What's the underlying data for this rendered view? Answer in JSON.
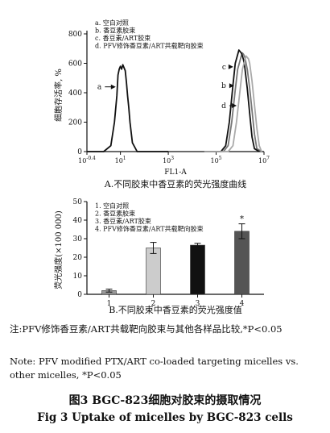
{
  "chart_data": [
    {
      "type": "line",
      "caption": "A.不同胶束中香豆素的荧光强度曲线",
      "xlabel": "FL1-A",
      "ylabel": "细胞存活率, %",
      "xscale": "log",
      "xlim": [
        -0.4,
        7.0
      ],
      "ylim": [
        0,
        800
      ],
      "y_ticks": [
        "0",
        "200",
        "400",
        "600",
        "800"
      ],
      "x_ticks": [
        {
          "pos": -0.4,
          "base": "10",
          "exp": "-0.4"
        },
        {
          "pos": 1,
          "base": "10",
          "exp": "1"
        },
        {
          "pos": 3,
          "base": "10",
          "exp": "3"
        },
        {
          "pos": 5,
          "base": "10",
          "exp": "5"
        },
        {
          "pos": 7,
          "base": "10",
          "exp": "7"
        }
      ],
      "legend": [
        "a. 空白对照",
        "b. 香豆素胶束",
        "c. 香豆素/ART胶束",
        "d. PFV修饰香豆素/ART共载靶向胶束"
      ],
      "series": [
        {
          "name": "a",
          "color": "#111111",
          "x": [
            -0.4,
            0.3,
            0.6,
            0.75,
            0.85,
            0.9,
            0.95,
            1.0,
            1.05,
            1.1,
            1.15,
            1.2,
            1.25,
            1.3,
            1.35,
            1.4,
            1.5,
            1.7,
            2.0,
            2.4,
            3.0
          ],
          "y": [
            0,
            0,
            40,
            200,
            380,
            520,
            560,
            580,
            560,
            590,
            570,
            550,
            470,
            380,
            300,
            200,
            60,
            0,
            0,
            0,
            0
          ]
        },
        {
          "name": "b",
          "color": "#777777",
          "x": [
            4.5,
            5.3,
            5.5,
            5.65,
            5.8,
            5.9,
            6.0,
            6.05,
            6.1,
            6.15,
            6.2,
            6.25,
            6.3,
            6.4,
            6.5,
            6.6,
            6.7,
            6.9
          ],
          "y": [
            0,
            0,
            40,
            200,
            420,
            560,
            620,
            650,
            670,
            660,
            640,
            600,
            560,
            430,
            280,
            120,
            20,
            0
          ]
        },
        {
          "name": "c",
          "color": "#111111",
          "x": [
            4.5,
            5.2,
            5.4,
            5.55,
            5.7,
            5.8,
            5.9,
            5.95,
            6.0,
            6.05,
            6.1,
            6.15,
            6.2,
            6.3,
            6.4,
            6.5,
            6.6,
            6.8
          ],
          "y": [
            0,
            0,
            40,
            200,
            450,
            600,
            660,
            690,
            680,
            670,
            650,
            620,
            570,
            430,
            260,
            100,
            20,
            0
          ]
        },
        {
          "name": "d",
          "color": "#aaaaaa",
          "x": [
            4.5,
            5.5,
            5.7,
            5.85,
            6.0,
            6.1,
            6.2,
            6.25,
            6.3,
            6.35,
            6.4,
            6.5,
            6.6,
            6.7,
            6.8,
            6.9
          ],
          "y": [
            0,
            0,
            40,
            200,
            420,
            560,
            620,
            650,
            640,
            630,
            600,
            480,
            320,
            160,
            40,
            0
          ]
        }
      ],
      "annotations": [
        {
          "text": "a",
          "target": "a"
        },
        {
          "text": "c",
          "target": "c"
        },
        {
          "text": "b",
          "target": "b"
        },
        {
          "text": "d",
          "target": "d"
        }
      ]
    },
    {
      "type": "bar",
      "caption": "B.不同胶束中香豆素的荧光强度值",
      "ylabel": "荧光强度(×100 000)",
      "ylim": [
        0,
        50
      ],
      "y_ticks": [
        "0",
        "10",
        "20",
        "30",
        "40",
        "50"
      ],
      "categories": [
        "1",
        "2",
        "3",
        "4"
      ],
      "values": [
        2,
        25,
        26.5,
        34
      ],
      "errors": [
        0.8,
        3,
        1,
        4
      ],
      "colors": [
        "#999999",
        "#cccccc",
        "#111111",
        "#555555"
      ],
      "legend": [
        "1. 空白对照",
        "2. 香豆素胶束",
        "3. 香豆素/ART胶束",
        "4. PFV修饰香豆素/ART共载靶向胶束"
      ],
      "significance": [
        "",
        "",
        "",
        "*"
      ]
    }
  ],
  "note_cn": "注:PFV修饰香豆素/ART共载靶向胶束与其他各样品比较,*P<0.05",
  "note_en": "Note: PFV modified PTX/ART co-loaded targeting micelles vs. other micelles, *P<0.05",
  "fig_title_cn": "图3  BGC-823细胞对胶束的摄取情况",
  "fig_title_en": "Fig 3  Uptake of micelles by BGC-823 cells"
}
